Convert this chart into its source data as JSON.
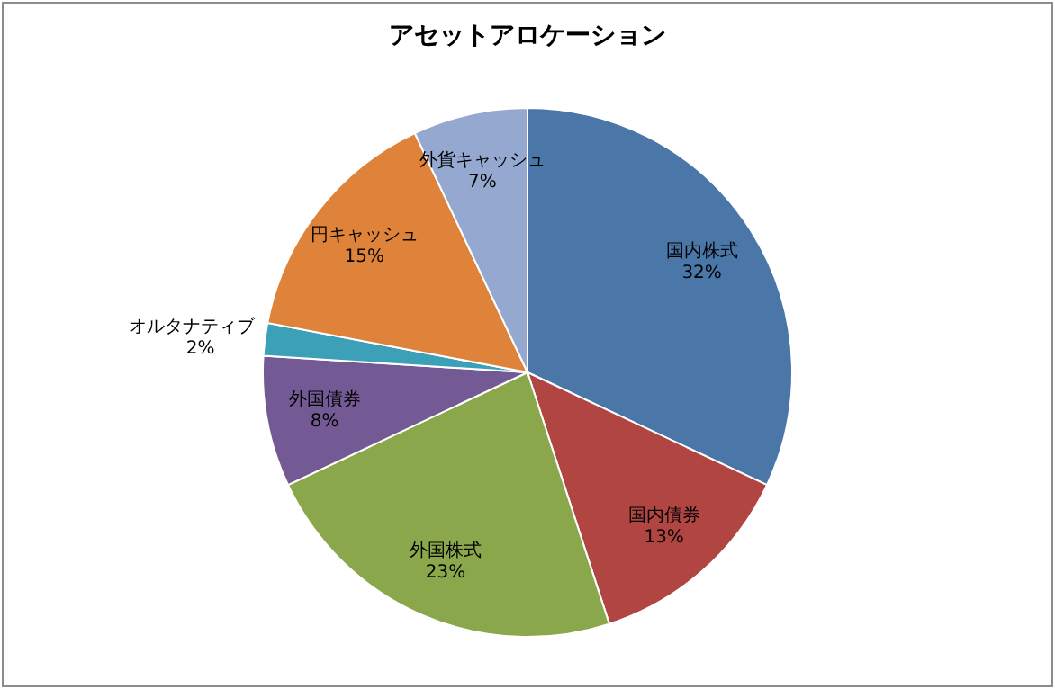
{
  "chart_data": {
    "type": "pie",
    "title": "アセットアロケーション",
    "categories": [
      "国内株式",
      "国内債券",
      "外国株式",
      "外国債券",
      "オルタナティブ",
      "円キャッシュ",
      "外貨キャッシュ"
    ],
    "values": [
      32,
      13,
      23,
      8,
      2,
      15,
      7
    ],
    "value_labels": [
      "32%",
      "13%",
      "23%",
      "8%",
      "2%",
      "15%",
      "7%"
    ],
    "colors": [
      "#4a76a8",
      "#b04542",
      "#8aa84b",
      "#745a94",
      "#3ba0b8",
      "#e0833a",
      "#94a8d0"
    ]
  }
}
